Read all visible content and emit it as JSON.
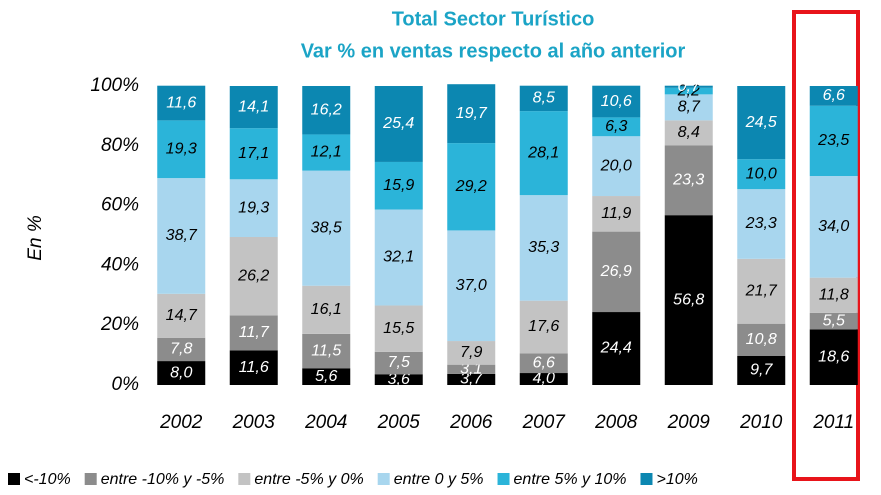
{
  "chart_data": {
    "type": "stacked_bar",
    "title": "Total Sector Turístico",
    "subtitle": "Var % en ventas respecto al año anterior",
    "ylabel": "En %",
    "categories": [
      "2002",
      "2003",
      "2004",
      "2005",
      "2006",
      "2007",
      "2008",
      "2009",
      "2010",
      "2011"
    ],
    "ylim": [
      0,
      100
    ],
    "yticks": [
      {
        "value": 0,
        "label": "0%"
      },
      {
        "value": 20,
        "label": "20%"
      },
      {
        "value": 40,
        "label": "40%"
      },
      {
        "value": 60,
        "label": "60%"
      },
      {
        "value": 80,
        "label": "80%"
      },
      {
        "value": 100,
        "label": "100%"
      }
    ],
    "series": [
      {
        "name": "<-10%",
        "color": "#000000",
        "values": [
          8.0,
          11.6,
          5.6,
          3.6,
          3.7,
          4.0,
          24.4,
          56.8,
          9.7,
          18.6
        ],
        "value_labels": [
          "8,0",
          "11,6",
          "5,6",
          "3,6",
          "3,7",
          "4,0",
          "24,4",
          "56,8",
          "9,7",
          "18,6"
        ]
      },
      {
        "name": "entre -10% y -5%",
        "color": "#8c8c8c",
        "values": [
          7.8,
          11.7,
          11.5,
          7.5,
          3.1,
          6.6,
          26.9,
          23.3,
          10.8,
          5.5
        ],
        "value_labels": [
          "7,8",
          "11,7",
          "11,5",
          "7,5",
          "3,1",
          "6,6",
          "26,9",
          "23,3",
          "10,8",
          "5,5"
        ]
      },
      {
        "name": "entre -5% y 0%",
        "color": "#c3c3c3",
        "values": [
          14.7,
          26.2,
          16.1,
          15.5,
          7.9,
          17.6,
          11.9,
          8.4,
          21.7,
          11.8
        ],
        "value_labels": [
          "14,7",
          "26,2",
          "16,1",
          "15,5",
          "7,9",
          "17,6",
          "11,9",
          "8,4",
          "21,7",
          "11,8"
        ]
      },
      {
        "name": "entre 0 y 5%",
        "color": "#a8d6ee",
        "values": [
          38.7,
          19.3,
          38.5,
          32.1,
          37.0,
          35.3,
          20.0,
          8.7,
          23.3,
          34.0
        ],
        "value_labels": [
          "38,7",
          "19,3",
          "38,5",
          "32,1",
          "37,0",
          "35,3",
          "20,0",
          "8,7",
          "23,3",
          "34,0"
        ]
      },
      {
        "name": "entre 5% y 10%",
        "color": "#2bb4d9",
        "values": [
          19.3,
          17.1,
          12.1,
          15.9,
          29.2,
          28.1,
          6.3,
          2.2,
          10.0,
          23.5
        ],
        "value_labels": [
          "19,3",
          "17,1",
          "12,1",
          "15,9",
          "29,2",
          "28,1",
          "6,3",
          "2,2",
          "10,0",
          "23,5"
        ]
      },
      {
        "name": ">10%",
        "color": "#0c87b1",
        "values": [
          11.6,
          14.1,
          16.2,
          25.4,
          19.7,
          8.5,
          10.6,
          0.7,
          24.5,
          6.6
        ],
        "value_labels": [
          "11,6",
          "14,1",
          "16,2",
          "25,4",
          "19,7",
          "8,5",
          "10,6",
          "0,7",
          "24,5",
          "6,6"
        ]
      }
    ]
  }
}
